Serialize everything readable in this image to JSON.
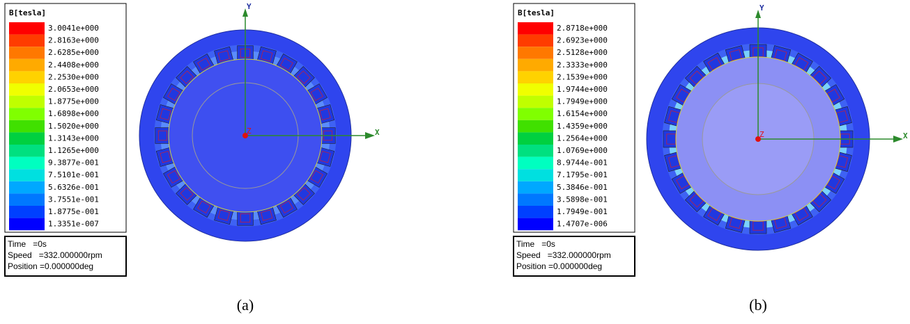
{
  "panels": [
    {
      "legend": {
        "title": "B[tesla]",
        "labels": [
          "3.0041e+000",
          "2.8163e+000",
          "2.6285e+000",
          "2.4408e+000",
          "2.2530e+000",
          "2.0653e+000",
          "1.8775e+000",
          "1.6898e+000",
          "1.5020e+000",
          "1.3143e+000",
          "1.1265e+000",
          "9.3877e-001",
          "7.5101e-001",
          "5.6326e-001",
          "3.7551e-001",
          "1.8775e-001",
          "1.3351e-007"
        ]
      },
      "info": [
        "Time   =0s",
        "Speed   =332.000000rpm",
        "Position =0.000000deg"
      ],
      "axes": {
        "x": "X",
        "y": "Y",
        "z": "Z"
      },
      "caption": "(a)"
    },
    {
      "legend": {
        "title": "B[tesla]",
        "labels": [
          "2.8718e+000",
          "2.6923e+000",
          "2.5128e+000",
          "2.3333e+000",
          "2.1539e+000",
          "1.9744e+000",
          "1.7949e+000",
          "1.6154e+000",
          "1.4359e+000",
          "1.2564e+000",
          "1.0769e+000",
          "8.9744e-001",
          "7.1795e-001",
          "5.3846e-001",
          "3.5898e-001",
          "1.7949e-001",
          "1.4707e-006"
        ]
      },
      "info": [
        "Time   =0s",
        "Speed   =332.000000rpm",
        "Position =0.000000deg"
      ],
      "axes": {
        "x": "X",
        "y": "Y",
        "z": "Z"
      },
      "caption": "(b)"
    }
  ]
}
